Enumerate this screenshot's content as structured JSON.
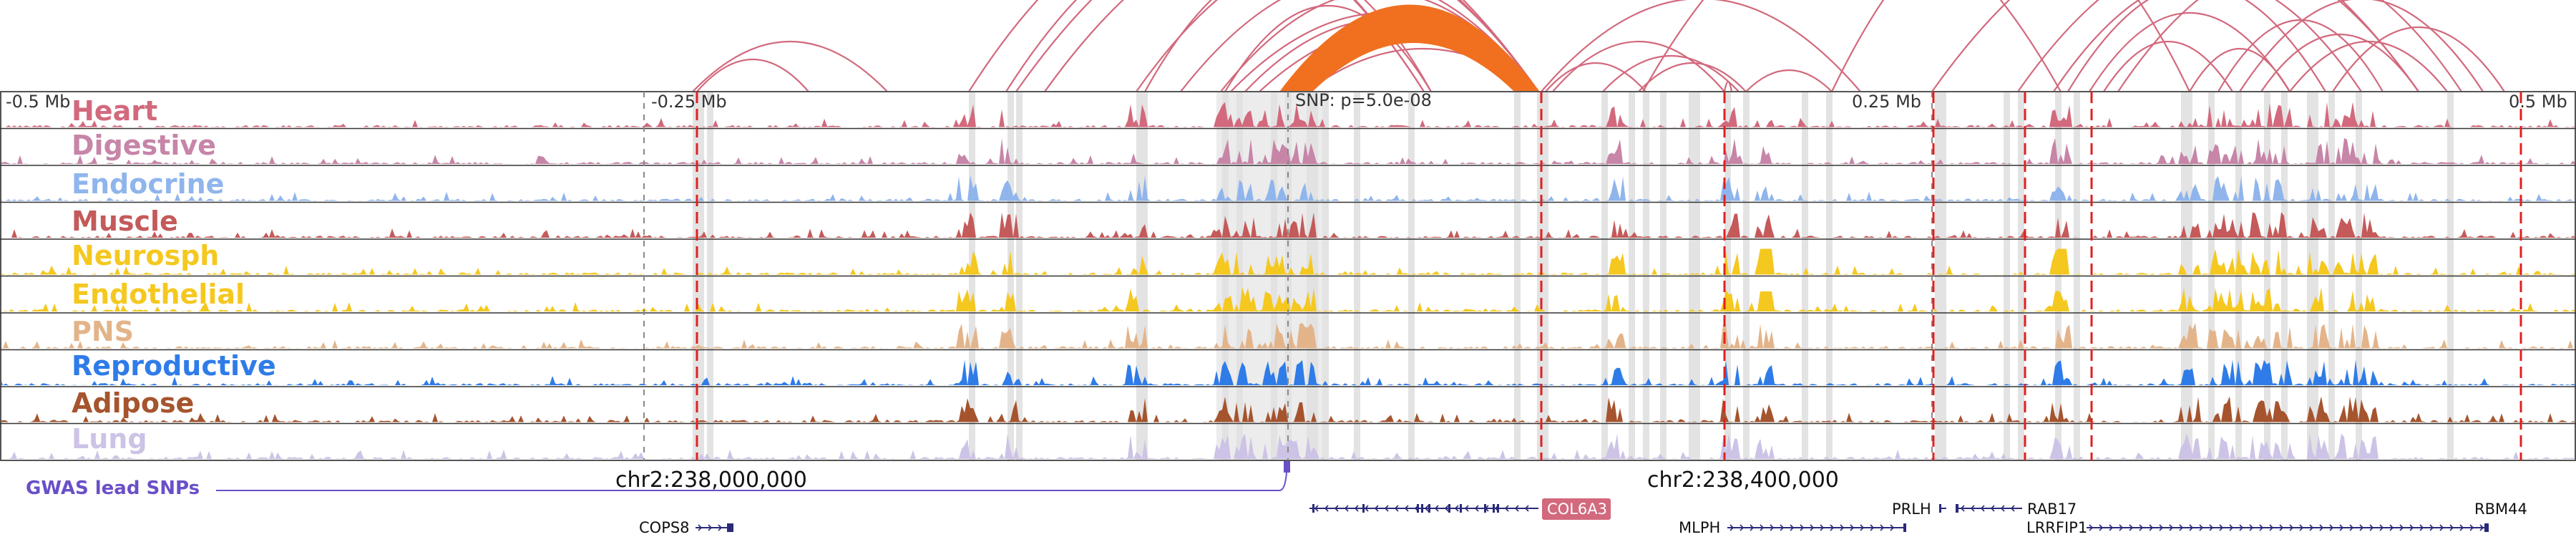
{
  "scale": {
    "labels": [
      "-0.5 Mb",
      "-0.25 Mb",
      "0.25 Mb",
      "0.5 Mb"
    ],
    "snp_label": "SNP: p=5.0e-08"
  },
  "tracks": [
    {
      "name": "Heart",
      "color": "#d2697d"
    },
    {
      "name": "Digestive",
      "color": "#c785a8"
    },
    {
      "name": "Endocrine",
      "color": "#8fb5ec"
    },
    {
      "name": "Muscle",
      "color": "#c45a5a"
    },
    {
      "name": "Neurosph",
      "color": "#f5c820"
    },
    {
      "name": "Endothelial",
      "color": "#f5c820"
    },
    {
      "name": "PNS",
      "color": "#e3b48a"
    },
    {
      "name": "Reproductive",
      "color": "#2f7ce8"
    },
    {
      "name": "Adipose",
      "color": "#a5542e"
    },
    {
      "name": "Lung",
      "color": "#cdc3e6"
    }
  ],
  "gwas_label": "GWAS lead SNPs",
  "coords": [
    "chr2:238,000,000",
    "chr2:238,400,000"
  ],
  "genes": {
    "cops8": "COPS8",
    "col6a3": "COL6A3",
    "prlh": "PRLH",
    "mlph": "MLPH",
    "rab17": "RAB17",
    "lrrfip1": "LRRFIP1",
    "rbm44": "RBM44"
  },
  "colors": {
    "arc": "#d2697d",
    "arc_highlight": "#f07020",
    "gwas": "#6a4fc8",
    "highlight_gene_bg": "#d2697d",
    "red_dashed": "#e02020",
    "gene_strand": "#2a2a7a"
  }
}
